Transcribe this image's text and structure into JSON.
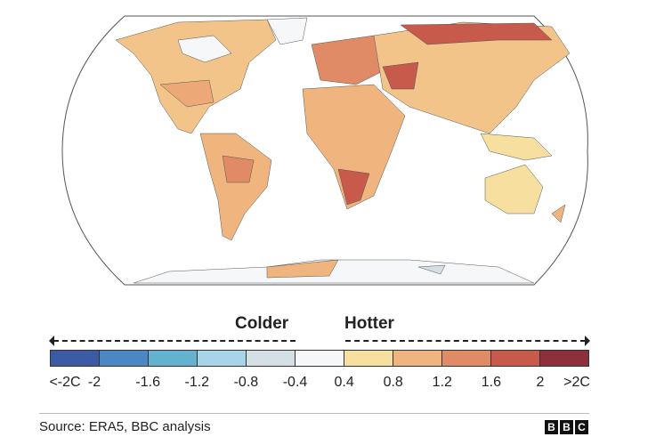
{
  "legend": {
    "colder_label": "Colder",
    "hotter_label": "Hotter",
    "colors": [
      "#3b5ba5",
      "#4a87c4",
      "#62b2d0",
      "#a9d3e8",
      "#d5e0e6",
      "#f6f7f9",
      "#f7dfa0",
      "#f0b57f",
      "#e08a66",
      "#c85a4c",
      "#8e2f3c"
    ],
    "ticks": [
      "<-2C",
      "-2",
      "-1.6",
      "-1.2",
      "-0.8",
      "-0.4",
      "0.4",
      "0.8",
      "1.2",
      "1.6",
      "2",
      ">2C"
    ]
  },
  "footer": {
    "source": "Source: ERA5, BBC analysis",
    "logo": [
      "B",
      "B",
      "C"
    ]
  }
}
